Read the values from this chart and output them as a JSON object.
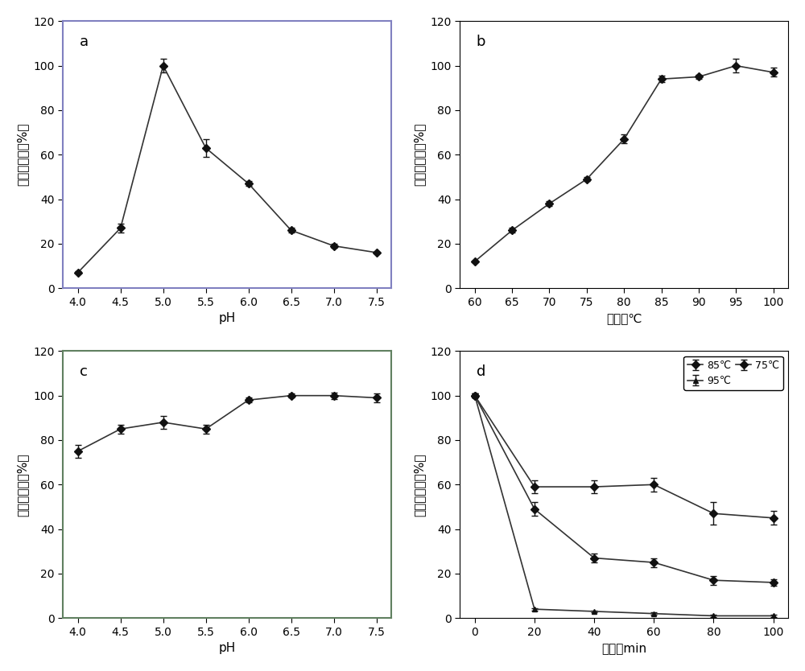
{
  "panel_a": {
    "label": "a",
    "x": [
      4,
      4.5,
      5,
      5.5,
      6,
      6.5,
      7,
      7.5
    ],
    "y": [
      7,
      27,
      100,
      63,
      47,
      26,
      19,
      16
    ],
    "yerr": [
      0.5,
      2,
      3,
      4,
      1,
      1,
      1,
      0.5
    ],
    "xlabel": "pH",
    "ylabel": "相对酶活力（%）",
    "ylim": [
      0,
      120
    ],
    "yticks": [
      0,
      20,
      40,
      60,
      80,
      100,
      120
    ],
    "xticks": [
      4,
      4.5,
      5,
      5.5,
      6,
      6.5,
      7,
      7.5
    ]
  },
  "panel_b": {
    "label": "b",
    "x": [
      60,
      65,
      70,
      75,
      80,
      85,
      90,
      95,
      100
    ],
    "y": [
      12,
      26,
      38,
      49,
      67,
      94,
      95,
      100,
      97
    ],
    "yerr": [
      0.5,
      1,
      1,
      1,
      2,
      1.5,
      1,
      3,
      2
    ],
    "xlabel": "温度／℃",
    "ylabel": "相对酶活力（%）",
    "ylim": [
      0,
      120
    ],
    "yticks": [
      0,
      20,
      40,
      60,
      80,
      100,
      120
    ],
    "xticks": [
      60,
      65,
      70,
      75,
      80,
      85,
      90,
      95,
      100
    ]
  },
  "panel_c": {
    "label": "c",
    "x": [
      4,
      4.5,
      5,
      5.5,
      6,
      6.5,
      7,
      7.5
    ],
    "y": [
      75,
      85,
      88,
      85,
      98,
      100,
      100,
      99
    ],
    "yerr": [
      3,
      2,
      3,
      2,
      1,
      1,
      1.5,
      2
    ],
    "xlabel": "pH",
    "ylabel": "相对酶活力（%）",
    "ylim": [
      0,
      120
    ],
    "yticks": [
      0,
      20,
      40,
      60,
      80,
      100,
      120
    ],
    "xticks": [
      4,
      4.5,
      5,
      5.5,
      6,
      6.5,
      7,
      7.5
    ]
  },
  "panel_d": {
    "label": "d",
    "x": [
      0,
      20,
      40,
      60,
      80,
      100
    ],
    "series": {
      "85℃": {
        "y": [
          100,
          59,
          59,
          60,
          47,
          45
        ],
        "yerr": [
          1,
          3,
          3,
          3,
          5,
          3
        ],
        "marker": "D",
        "linestyle": "-"
      },
      "95℃": {
        "y": [
          100,
          4,
          3,
          2,
          1,
          1
        ],
        "yerr": [
          1,
          0.5,
          0.5,
          0.5,
          0.5,
          0.5
        ],
        "marker": "^",
        "linestyle": "-"
      },
      "75℃": {
        "y": [
          100,
          49,
          27,
          25,
          17,
          16
        ],
        "yerr": [
          1,
          3,
          2,
          2,
          2,
          1.5
        ],
        "marker": "D",
        "linestyle": "-"
      }
    },
    "xlabel": "时间／min",
    "ylabel": "相对酶活力（%）",
    "ylim": [
      0,
      120
    ],
    "yticks": [
      0,
      20,
      40,
      60,
      80,
      100,
      120
    ],
    "xticks": [
      0,
      20,
      40,
      60,
      80,
      100
    ]
  },
  "line_color": "#333333",
  "marker_color": "#111111",
  "background": "#ffffff",
  "border_color_a": "#8080a0",
  "border_color_c": "#80a080"
}
